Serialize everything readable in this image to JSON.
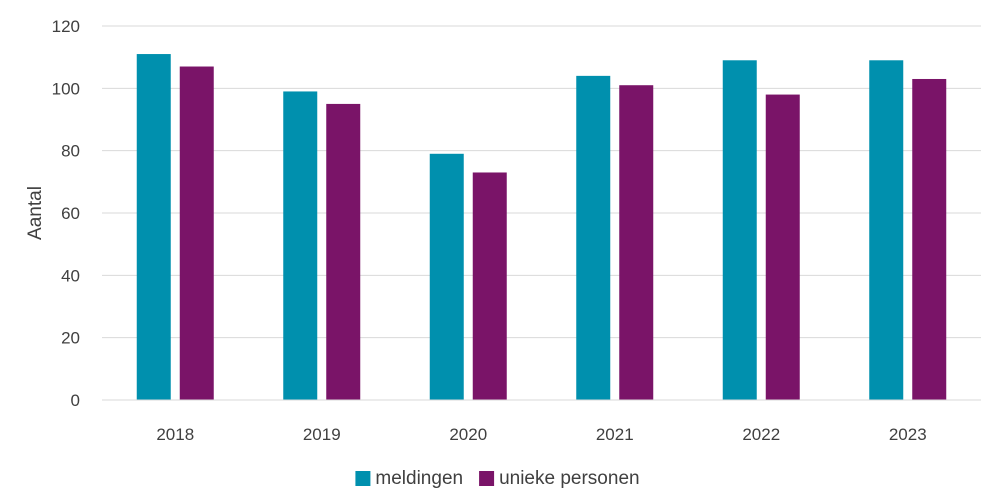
{
  "chart_data": {
    "type": "bar",
    "title": "",
    "xlabel": "",
    "ylabel": "Aantal",
    "ylim": [
      0,
      120
    ],
    "yticks": [
      0,
      20,
      40,
      60,
      80,
      100,
      120
    ],
    "grid": true,
    "legend_position": "bottom",
    "categories": [
      "2018",
      "2019",
      "2020",
      "2021",
      "2022",
      "2023"
    ],
    "series": [
      {
        "name": "meldingen",
        "color": "#0090AE",
        "values": [
          111,
          99,
          79,
          104,
          109,
          109
        ]
      },
      {
        "name": "unieke personen",
        "color": "#7A1468",
        "values": [
          107,
          95,
          73,
          101,
          98,
          103
        ]
      }
    ]
  }
}
